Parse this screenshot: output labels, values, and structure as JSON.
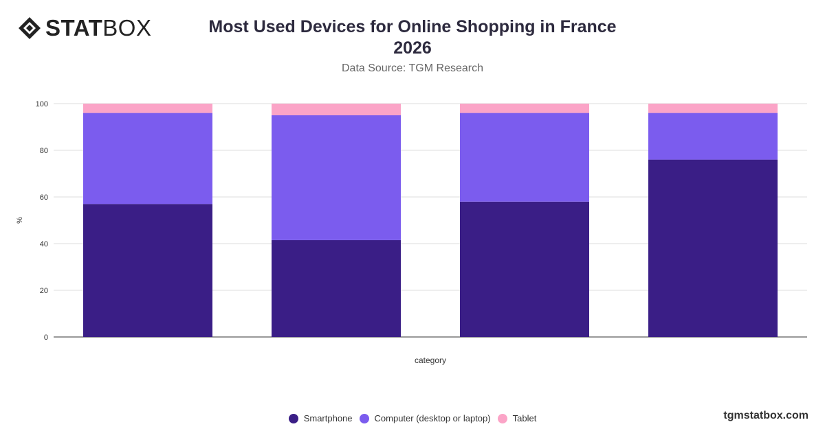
{
  "header": {
    "logo_text_bold": "STAT",
    "logo_text_light": "BOX",
    "title_line1": "Most Used Devices for Online Shopping in France",
    "title_line2": "2026",
    "subtitle": "Data Source: TGM Research"
  },
  "footer": {
    "brand": "tgmstatbox.com"
  },
  "chart_data": {
    "type": "bar",
    "stacked": true,
    "categories": [
      "",
      "",
      "",
      ""
    ],
    "series": [
      {
        "name": "Smartphone",
        "color": "#3a1e86",
        "values": [
          57,
          41.5,
          58,
          76
        ]
      },
      {
        "name": "Computer (desktop or laptop)",
        "color": "#7b5cee",
        "values": [
          39,
          53.5,
          38,
          20
        ]
      },
      {
        "name": "Tablet",
        "color": "#fba4c7",
        "values": [
          4,
          5,
          4,
          4
        ]
      }
    ],
    "xlabel": "category",
    "ylabel": "%",
    "ylim": [
      0,
      100
    ],
    "yticks": [
      "0",
      "20",
      "40",
      "60",
      "80",
      "100"
    ],
    "grid": true,
    "legend_position": "bottom"
  }
}
